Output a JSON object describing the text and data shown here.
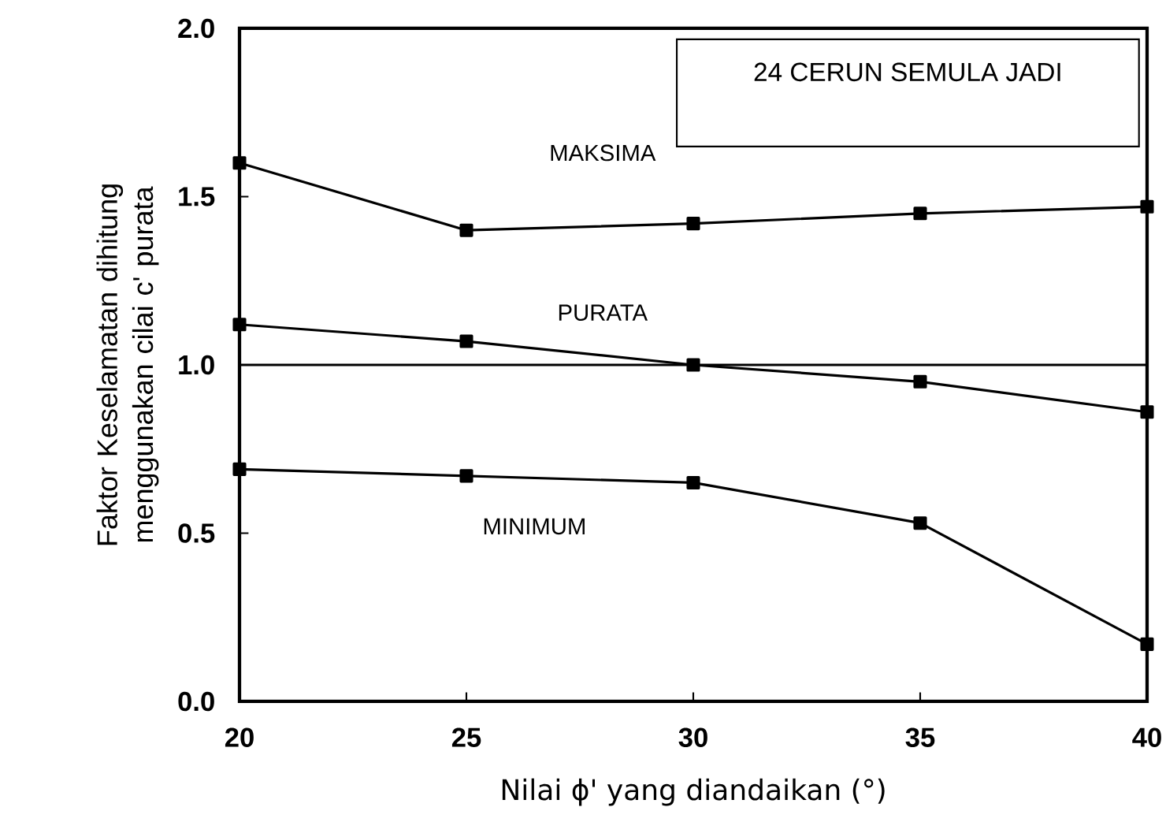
{
  "chart_data": {
    "type": "line",
    "xlabel": "Nilai ϕ' yang diandaikan (°)",
    "ylabel": "Faktor Keselamatan dihitung menggunakan cilai c' purata",
    "annotations": [
      "24 CERUN SEMULA JADI"
    ],
    "x": [
      20,
      25,
      30,
      35,
      40
    ],
    "series": [
      {
        "name": "MAKSIMA",
        "color": "#000000",
        "values": [
          1.6,
          1.4,
          1.42,
          1.45,
          1.47
        ]
      },
      {
        "name": "PURATA",
        "color": "#000000",
        "values": [
          1.12,
          1.07,
          1.0,
          0.95,
          0.86
        ]
      },
      {
        "name": "MINIMUM",
        "color": "#000000",
        "values": [
          0.69,
          0.67,
          0.65,
          0.53,
          0.17
        ]
      }
    ],
    "ref_lines": [
      {
        "axis": "y",
        "value": 1.0,
        "color": "#000000",
        "line_style": "solid"
      }
    ],
    "xlim": [
      20,
      40
    ],
    "ylim": [
      0,
      2.0
    ],
    "xticks": [
      20,
      25,
      30,
      35,
      40
    ],
    "yticks": [
      {
        "value": 0,
        "label": "0.0"
      },
      {
        "value": 0.5,
        "label": "0.5"
      },
      {
        "value": 1.0,
        "label": "1.0"
      },
      {
        "value": 1.5,
        "label": "1.5"
      },
      {
        "value": 2.0,
        "label": "2.0"
      }
    ],
    "grid": false,
    "marker": "square",
    "line_style": "solid"
  }
}
